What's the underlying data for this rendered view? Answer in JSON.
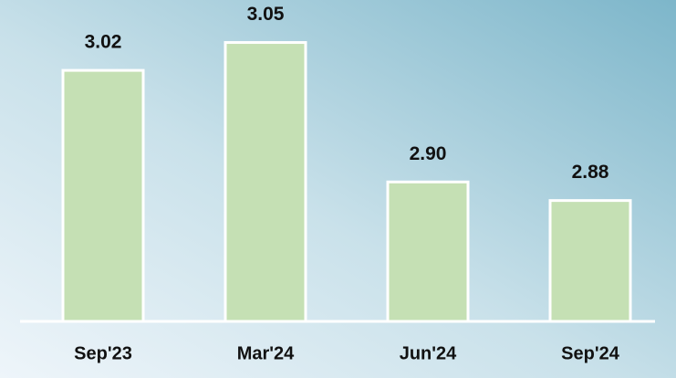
{
  "chart_data": {
    "type": "bar",
    "categories": [
      "Sep'23",
      "Mar'24",
      "Jun'24",
      "Sep'24"
    ],
    "values": [
      3.02,
      3.05,
      2.9,
      2.88
    ],
    "value_labels": [
      "3.02",
      "3.05",
      "2.90",
      "2.88"
    ],
    "color": "#c5e0b4",
    "ylim": [
      2.75,
      3.08
    ]
  }
}
